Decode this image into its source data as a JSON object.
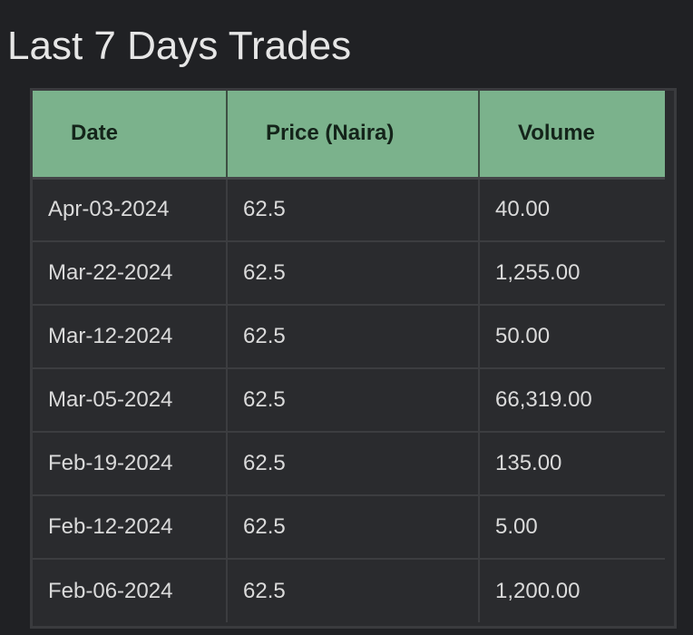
{
  "page": {
    "title": "Last 7 Days Trades"
  },
  "table": {
    "headers": [
      "Date",
      "Price (Naira)",
      "Volume"
    ],
    "rows": [
      {
        "date": "Apr-03-2024",
        "price": "62.5",
        "volume": "40.00"
      },
      {
        "date": "Mar-22-2024",
        "price": "62.5",
        "volume": "1,255.00"
      },
      {
        "date": "Mar-12-2024",
        "price": "62.5",
        "volume": "50.00"
      },
      {
        "date": "Mar-05-2024",
        "price": "62.5",
        "volume": "66,319.00"
      },
      {
        "date": "Feb-19-2024",
        "price": "62.5",
        "volume": "135.00"
      },
      {
        "date": "Feb-12-2024",
        "price": "62.5",
        "volume": "5.00"
      },
      {
        "date": "Feb-06-2024",
        "price": "62.5",
        "volume": "1,200.00"
      }
    ]
  },
  "colors": {
    "background": "#202124",
    "header_background": "#7bb28c",
    "header_text": "#14241a",
    "cell_background": "#2a2b2e",
    "cell_text": "#dadada",
    "title_text": "#e6e6e6"
  }
}
